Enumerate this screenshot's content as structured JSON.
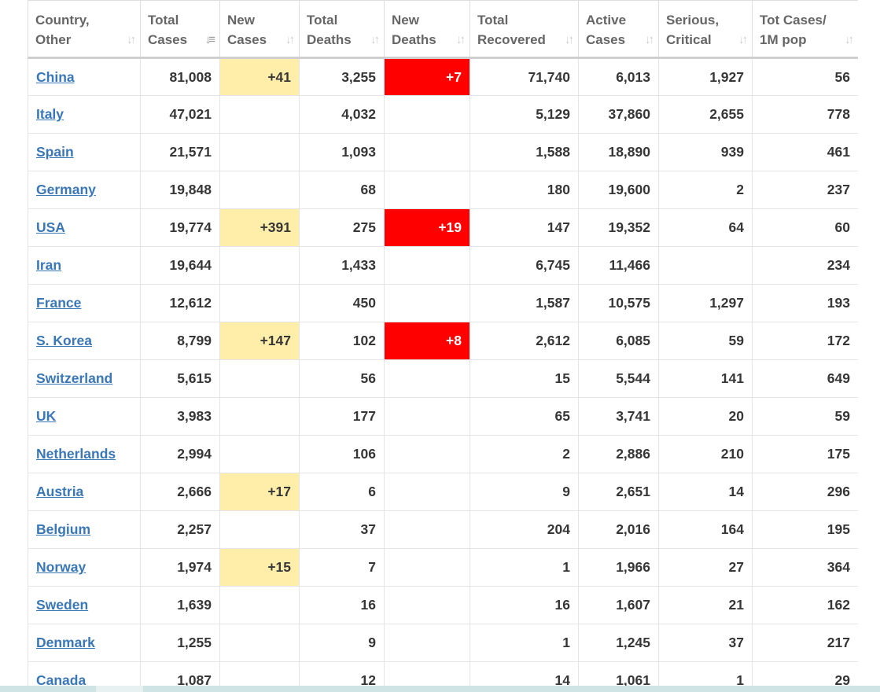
{
  "table": {
    "headers": [
      {
        "line1": "Country,",
        "line2": "Other",
        "icon": "sort-icon",
        "align": "left"
      },
      {
        "line1": "Total",
        "line2": "Cases",
        "icon": "sort-desc-active-icon",
        "align": "left"
      },
      {
        "line1": "New",
        "line2": "Cases",
        "icon": "sort-icon",
        "align": "left"
      },
      {
        "line1": "Total",
        "line2": "Deaths",
        "icon": "sort-icon",
        "align": "left"
      },
      {
        "line1": "New",
        "line2": "Deaths",
        "icon": "sort-icon",
        "align": "left"
      },
      {
        "line1": "Total",
        "line2": "Recovered",
        "icon": "sort-icon",
        "align": "left"
      },
      {
        "line1": "Active",
        "line2": "Cases",
        "icon": "sort-icon",
        "align": "left"
      },
      {
        "line1": "Serious,",
        "line2": "Critical",
        "icon": "sort-icon",
        "align": "left"
      },
      {
        "line1": "Tot Cases/",
        "line2": "1M pop",
        "icon": "sort-icon",
        "align": "left"
      }
    ],
    "rows": [
      {
        "country": "China",
        "total_cases": "81,008",
        "new_cases": "+41",
        "total_deaths": "3,255",
        "new_deaths": "+7",
        "total_recovered": "71,740",
        "active_cases": "6,013",
        "serious": "1,927",
        "per_1m": "56"
      },
      {
        "country": "Italy",
        "total_cases": "47,021",
        "new_cases": "",
        "total_deaths": "4,032",
        "new_deaths": "",
        "total_recovered": "5,129",
        "active_cases": "37,860",
        "serious": "2,655",
        "per_1m": "778"
      },
      {
        "country": "Spain",
        "total_cases": "21,571",
        "new_cases": "",
        "total_deaths": "1,093",
        "new_deaths": "",
        "total_recovered": "1,588",
        "active_cases": "18,890",
        "serious": "939",
        "per_1m": "461"
      },
      {
        "country": "Germany",
        "total_cases": "19,848",
        "new_cases": "",
        "total_deaths": "68",
        "new_deaths": "",
        "total_recovered": "180",
        "active_cases": "19,600",
        "serious": "2",
        "per_1m": "237"
      },
      {
        "country": "USA",
        "total_cases": "19,774",
        "new_cases": "+391",
        "total_deaths": "275",
        "new_deaths": "+19",
        "total_recovered": "147",
        "active_cases": "19,352",
        "serious": "64",
        "per_1m": "60"
      },
      {
        "country": "Iran",
        "total_cases": "19,644",
        "new_cases": "",
        "total_deaths": "1,433",
        "new_deaths": "",
        "total_recovered": "6,745",
        "active_cases": "11,466",
        "serious": "",
        "per_1m": "234"
      },
      {
        "country": "France",
        "total_cases": "12,612",
        "new_cases": "",
        "total_deaths": "450",
        "new_deaths": "",
        "total_recovered": "1,587",
        "active_cases": "10,575",
        "serious": "1,297",
        "per_1m": "193"
      },
      {
        "country": "S. Korea",
        "total_cases": "8,799",
        "new_cases": "+147",
        "total_deaths": "102",
        "new_deaths": "+8",
        "total_recovered": "2,612",
        "active_cases": "6,085",
        "serious": "59",
        "per_1m": "172"
      },
      {
        "country": "Switzerland",
        "total_cases": "5,615",
        "new_cases": "",
        "total_deaths": "56",
        "new_deaths": "",
        "total_recovered": "15",
        "active_cases": "5,544",
        "serious": "141",
        "per_1m": "649"
      },
      {
        "country": "UK",
        "total_cases": "3,983",
        "new_cases": "",
        "total_deaths": "177",
        "new_deaths": "",
        "total_recovered": "65",
        "active_cases": "3,741",
        "serious": "20",
        "per_1m": "59"
      },
      {
        "country": "Netherlands",
        "total_cases": "2,994",
        "new_cases": "",
        "total_deaths": "106",
        "new_deaths": "",
        "total_recovered": "2",
        "active_cases": "2,886",
        "serious": "210",
        "per_1m": "175"
      },
      {
        "country": "Austria",
        "total_cases": "2,666",
        "new_cases": "+17",
        "total_deaths": "6",
        "new_deaths": "",
        "total_recovered": "9",
        "active_cases": "2,651",
        "serious": "14",
        "per_1m": "296"
      },
      {
        "country": "Belgium",
        "total_cases": "2,257",
        "new_cases": "",
        "total_deaths": "37",
        "new_deaths": "",
        "total_recovered": "204",
        "active_cases": "2,016",
        "serious": "164",
        "per_1m": "195"
      },
      {
        "country": "Norway",
        "total_cases": "1,974",
        "new_cases": "+15",
        "total_deaths": "7",
        "new_deaths": "",
        "total_recovered": "1",
        "active_cases": "1,966",
        "serious": "27",
        "per_1m": "364"
      },
      {
        "country": "Sweden",
        "total_cases": "1,639",
        "new_cases": "",
        "total_deaths": "16",
        "new_deaths": "",
        "total_recovered": "16",
        "active_cases": "1,607",
        "serious": "21",
        "per_1m": "162"
      },
      {
        "country": "Denmark",
        "total_cases": "1,255",
        "new_cases": "",
        "total_deaths": "9",
        "new_deaths": "",
        "total_recovered": "1",
        "active_cases": "1,245",
        "serious": "37",
        "per_1m": "217"
      },
      {
        "country": "Canada",
        "total_cases": "1,087",
        "new_cases": "",
        "total_deaths": "12",
        "new_deaths": "",
        "total_recovered": "14",
        "active_cases": "1,061",
        "serious": "1",
        "per_1m": "29"
      }
    ]
  },
  "colors": {
    "new_cases_highlight": "#ffeeaa",
    "new_deaths_highlight": "#ff0000",
    "link": "#3a77b7",
    "header_text": "#666666"
  }
}
